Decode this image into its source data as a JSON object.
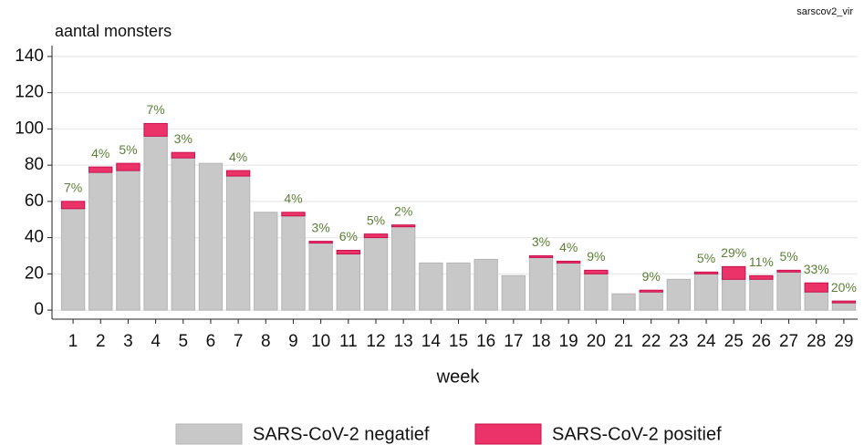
{
  "chart_data": {
    "type": "stacked_bar",
    "note_label": "sarscov2_vir",
    "ylabel": "aantal monsters",
    "xlabel": "week",
    "categories": [
      "1",
      "2",
      "3",
      "4",
      "5",
      "6",
      "7",
      "8",
      "9",
      "10",
      "11",
      "12",
      "13",
      "14",
      "15",
      "16",
      "17",
      "18",
      "19",
      "20",
      "21",
      "22",
      "23",
      "24",
      "25",
      "26",
      "27",
      "28",
      "29"
    ],
    "series": [
      {
        "name": "SARS-CoV-2 negatief",
        "color": "#c8c8c8",
        "stroke": "#b4b4b4",
        "values": [
          56,
          76,
          77,
          96,
          84,
          81,
          74,
          54,
          52,
          37,
          31,
          40,
          46,
          26,
          26,
          28,
          19,
          29,
          26,
          20,
          9,
          10,
          17,
          20,
          17,
          17,
          21,
          10,
          4
        ]
      },
      {
        "name": "SARS-CoV-2 positief",
        "color": "#ec3369",
        "stroke": "#c8104c",
        "values": [
          4,
          3,
          4,
          7,
          3,
          0,
          3,
          0,
          2,
          1,
          2,
          2,
          1,
          0,
          0,
          0,
          0,
          1,
          1,
          2,
          0,
          1,
          0,
          1,
          7,
          2,
          1,
          5,
          1
        ]
      }
    ],
    "percent_labels": [
      "7%",
      "4%",
      "5%",
      "7%",
      "3%",
      null,
      "4%",
      null,
      "4%",
      "3%",
      "6%",
      "5%",
      "2%",
      null,
      null,
      null,
      null,
      "3%",
      "4%",
      "9%",
      null,
      "9%",
      null,
      "5%",
      "29%",
      "11%",
      "5%",
      "33%",
      "20%"
    ],
    "percent_color": "#5b7f35",
    "ylim": [
      -5,
      146
    ],
    "yticks": [
      0,
      20,
      40,
      60,
      80,
      100,
      120,
      140
    ],
    "grid": true
  }
}
